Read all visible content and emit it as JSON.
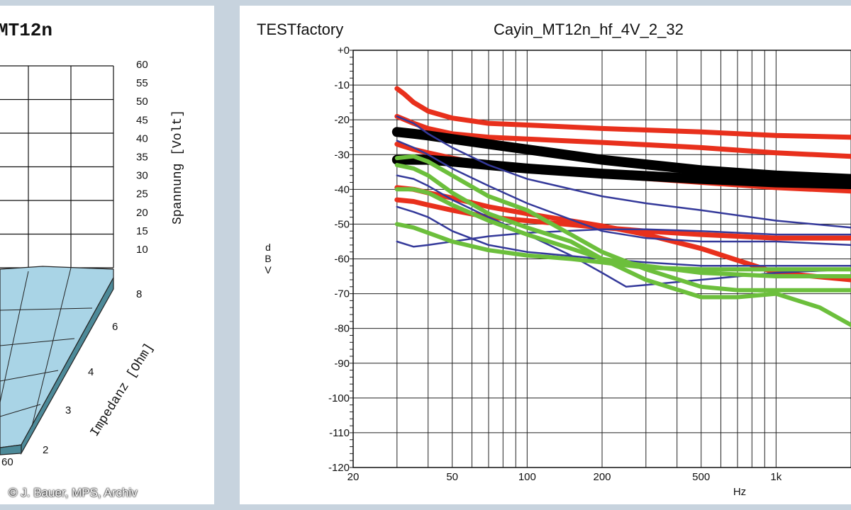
{
  "left_chart": {
    "title_fragment": "MT12n",
    "voltage_axis_label": "Spannung [Volt]",
    "voltage_ticks": [
      "60",
      "55",
      "50",
      "45",
      "40",
      "35",
      "30",
      "25",
      "20",
      "15",
      "10"
    ],
    "impedance_axis_label": "Impedanz [Ohm]",
    "impedance_ticks": [
      "8",
      "6",
      "4",
      "3",
      "2"
    ],
    "corner_tick": "60",
    "surface_color": "#a9d4e6",
    "surface_side_color": "#4d8a99"
  },
  "credit": "© J. Bauer, MPS, Archiv",
  "chart_data": {
    "type": "line",
    "brand": "TESTfactory",
    "title": "Cayin_MT12n_hf_4V_2_32",
    "xlabel": "Hz",
    "ylabel": "dBV",
    "x_scale": "log",
    "xlim": [
      20,
      2000
    ],
    "ylim": [
      -120,
      0
    ],
    "x_tick_labels": [
      "20",
      "50",
      "100",
      "200",
      "500",
      "1k"
    ],
    "y_tick_labels": [
      "+0",
      "-10",
      "-20",
      "-30",
      "-40",
      "-50",
      "-60",
      "-70",
      "-80",
      "-90",
      "-100",
      "-110",
      "-120"
    ],
    "grid": true,
    "series": [
      {
        "color": "#e8301c",
        "width": 7,
        "x": [
          30,
          32,
          35,
          40,
          50,
          70,
          100,
          200,
          500,
          1000,
          2000
        ],
        "y": [
          -11,
          -12.5,
          -15,
          -17.5,
          -19.5,
          -21,
          -21.5,
          -22.5,
          -23.5,
          -24.5,
          -25
        ]
      },
      {
        "color": "#e8301c",
        "width": 7,
        "x": [
          30,
          35,
          40,
          50,
          70,
          100,
          200,
          500,
          1000,
          2000
        ],
        "y": [
          -19,
          -21,
          -22.5,
          -24,
          -25,
          -25.5,
          -26.5,
          -28,
          -29.5,
          -30.5
        ]
      },
      {
        "color": "#e8301c",
        "width": 7,
        "x": [
          30,
          35,
          40,
          50,
          70,
          100,
          200,
          500,
          1000,
          2000
        ],
        "y": [
          -27,
          -28.5,
          -29.5,
          -31,
          -33,
          -34,
          -36,
          -38,
          -39.5,
          -40.5
        ]
      },
      {
        "color": "#e8301c",
        "width": 7,
        "x": [
          30,
          35,
          40,
          50,
          70,
          100,
          200,
          300,
          500,
          1000,
          2000
        ],
        "y": [
          -39.5,
          -40,
          -41,
          -42.5,
          -45,
          -47,
          -50.5,
          -53,
          -57,
          -64,
          -66
        ]
      },
      {
        "color": "#e8301c",
        "width": 7,
        "x": [
          30,
          35,
          40,
          50,
          70,
          100,
          200,
          300,
          500,
          1000,
          2000
        ],
        "y": [
          -43,
          -43.5,
          -44.5,
          -46,
          -48,
          -49,
          -51,
          -52,
          -53,
          -54,
          -54
        ]
      },
      {
        "color": "#000000",
        "width": 14,
        "x": [
          30,
          35,
          40,
          50,
          70,
          100,
          200,
          500,
          1000,
          2000
        ],
        "y": [
          -23.5,
          -24,
          -24.5,
          -25.5,
          -27,
          -28.5,
          -31.5,
          -34.5,
          -36,
          -37
        ]
      },
      {
        "color": "#000000",
        "width": 14,
        "x": [
          30,
          35,
          40,
          50,
          70,
          100,
          200,
          500,
          1000,
          2000
        ],
        "y": [
          -31.5,
          -31.5,
          -31.5,
          -32,
          -33,
          -34,
          -35.5,
          -37,
          -38,
          -38.5
        ]
      },
      {
        "color": "#34399a",
        "width": 2.5,
        "x": [
          30,
          35,
          40,
          50,
          70,
          100,
          200,
          300,
          500,
          1000,
          2000
        ],
        "y": [
          -19,
          -21,
          -24,
          -28,
          -33,
          -37,
          -42,
          -44,
          -46,
          -49,
          -51
        ]
      },
      {
        "color": "#34399a",
        "width": 2.5,
        "x": [
          30,
          35,
          40,
          50,
          70,
          100,
          200,
          300,
          500,
          1000,
          2000
        ],
        "y": [
          -26,
          -28,
          -30,
          -34,
          -39,
          -44,
          -52,
          -54,
          -55,
          -55,
          -56
        ]
      },
      {
        "color": "#34399a",
        "width": 2.5,
        "x": [
          30,
          35,
          40,
          50,
          70,
          100,
          200,
          300,
          500,
          1000,
          2000
        ],
        "y": [
          -45,
          -46.5,
          -48,
          -52,
          -56,
          -58,
          -60,
          -61,
          -62,
          -62,
          -62
        ]
      },
      {
        "color": "#34399a",
        "width": 2.5,
        "x": [
          30,
          35,
          40,
          50,
          70,
          100,
          200,
          300,
          500,
          1000,
          2000
        ],
        "y": [
          -55,
          -56.5,
          -56,
          -55,
          -53.5,
          -52.5,
          -51.5,
          -51.5,
          -52,
          -53,
          -53
        ]
      },
      {
        "color": "#34399a",
        "width": 2.5,
        "x": [
          30,
          35,
          40,
          50,
          70,
          100,
          150,
          200,
          250,
          300,
          500,
          1000,
          2000
        ],
        "y": [
          -36,
          -37,
          -39,
          -43,
          -48,
          -53,
          -59,
          -64,
          -68,
          -67.5,
          -66,
          -64,
          -63
        ]
      },
      {
        "color": "#6cbf3c",
        "width": 6,
        "x": [
          30,
          35,
          40,
          50,
          70,
          100,
          150,
          200,
          300,
          500,
          700,
          1000,
          2000
        ],
        "y": [
          -31,
          -30.5,
          -32,
          -36,
          -42,
          -46,
          -53,
          -58,
          -63,
          -68,
          -69,
          -69,
          -69
        ]
      },
      {
        "color": "#6cbf3c",
        "width": 6,
        "x": [
          30,
          35,
          40,
          50,
          70,
          100,
          150,
          200,
          300,
          500,
          700,
          1000,
          1500,
          2000
        ],
        "y": [
          -33,
          -34,
          -36,
          -41,
          -47,
          -51,
          -55,
          -60,
          -66,
          -71,
          -71,
          -70,
          -74,
          -79
        ]
      },
      {
        "color": "#6cbf3c",
        "width": 6,
        "x": [
          30,
          35,
          40,
          50,
          70,
          100,
          150,
          200,
          300,
          500,
          1000,
          2000
        ],
        "y": [
          -40,
          -40,
          -41,
          -44.5,
          -49,
          -53,
          -57,
          -60,
          -62,
          -64,
          -65,
          -65
        ]
      },
      {
        "color": "#6cbf3c",
        "width": 6,
        "x": [
          30,
          35,
          40,
          50,
          70,
          100,
          150,
          200,
          300,
          500,
          1000,
          2000
        ],
        "y": [
          -50,
          -51,
          -52.5,
          -55,
          -57.5,
          -59,
          -60,
          -61,
          -62.5,
          -63,
          -63,
          -63
        ]
      }
    ]
  }
}
